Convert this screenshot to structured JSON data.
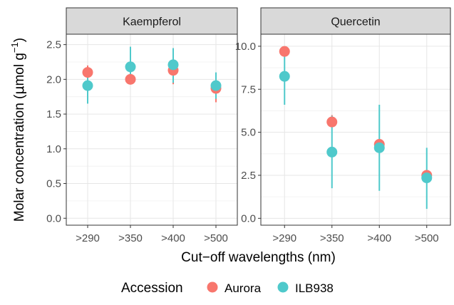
{
  "chart_data": {
    "type": "scatter",
    "facet_strip": "top",
    "grid": true,
    "legend_position": "bottom",
    "ylabel_main": "Molar concentration (",
    "ylabel_mu": "μ",
    "ylabel_unit": "mol g",
    "ylabel_exp": "−1",
    "ylabel_close": ")",
    "xlabel": "Cut−off wavelengths (nm)",
    "categories": [
      ">290",
      ">350",
      ">400",
      ">500"
    ],
    "legend_title": "Accession",
    "colors": {
      "Aurora": "#F8766D",
      "ILB938": "#4FC9CB"
    },
    "panels": [
      {
        "title": "Kaempferol",
        "ylim": [
          -0.1,
          2.65
        ],
        "yticks": [
          "0.0",
          "0.5",
          "1.0",
          "1.5",
          "2.0",
          "2.5"
        ],
        "series": [
          {
            "name": "Aurora",
            "values": [
              2.1,
              2.0,
              2.13,
              1.87
            ],
            "err_low": [
              2.0,
              1.95,
              1.93,
              1.67
            ],
            "err_high": [
              2.2,
              2.05,
              2.33,
              2.07
            ]
          },
          {
            "name": "ILB938",
            "values": [
              1.91,
              2.18,
              2.21,
              1.91
            ],
            "err_low": [
              1.65,
              1.95,
              1.95,
              1.72
            ],
            "err_high": [
              2.16,
              2.47,
              2.45,
              2.1
            ]
          }
        ]
      },
      {
        "title": "Quercetin",
        "ylim": [
          -0.4,
          10.7
        ],
        "yticks": [
          "0.0",
          "2.5",
          "5.0",
          "7.5",
          "10.0"
        ],
        "series": [
          {
            "name": "Aurora",
            "values": [
              9.7,
              5.6,
              4.3,
              2.5
            ],
            "err_low": [
              9.5,
              5.3,
              4.1,
              2.3
            ],
            "err_high": [
              9.9,
              6.0,
              4.5,
              2.7
            ]
          },
          {
            "name": "ILB938",
            "values": [
              8.25,
              3.85,
              4.1,
              2.35
            ],
            "err_low": [
              6.6,
              1.75,
              1.6,
              0.55
            ],
            "err_high": [
              9.9,
              5.95,
              6.6,
              4.1
            ]
          }
        ]
      }
    ]
  }
}
